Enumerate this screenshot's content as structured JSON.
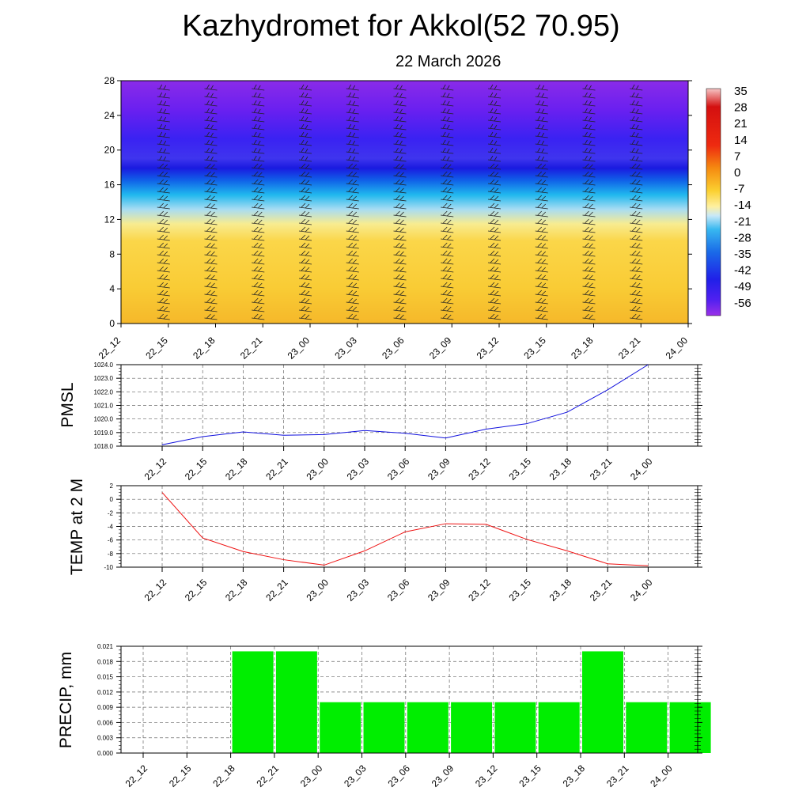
{
  "header": {
    "title": "Kazhydromet for Akkol(52 70.95)",
    "date": "22 March 2026"
  },
  "colors": {
    "pmsl_line": "#1010dd",
    "temp_line": "#ee1111",
    "precip_bar": "#00ee00",
    "warm": "#f9c52a",
    "cold": "#6a20f0"
  },
  "chart_data": [
    {
      "name": "cross-section",
      "type": "heatmap",
      "categories": [
        "22_12",
        "22_15",
        "22_18",
        "22_21",
        "23_00",
        "23_03",
        "23_06",
        "23_09",
        "23_12",
        "23_15",
        "23_18",
        "23_21",
        "24_00"
      ],
      "ylim": [
        0,
        28
      ],
      "yticks": [
        0,
        4,
        8,
        12,
        16,
        20,
        24,
        28
      ],
      "colorbar_labels": [
        "35",
        "28",
        "21",
        "14",
        "7",
        "0",
        "-7",
        "-14",
        "-21",
        "-28",
        "-35",
        "-42",
        "-49",
        "-56"
      ]
    },
    {
      "name": "pmsl",
      "type": "line",
      "ylabel": "PMSL",
      "categories": [
        "22_12",
        "22_15",
        "22_18",
        "22_21",
        "23_00",
        "23_03",
        "23_06",
        "23_09",
        "23_12",
        "23_15",
        "23_18",
        "23_21",
        "24_00"
      ],
      "values": [
        1018.1,
        1018.7,
        1019.05,
        1018.8,
        1018.85,
        1019.15,
        1018.95,
        1018.6,
        1019.25,
        1019.65,
        1020.5,
        1022.15,
        1024.0
      ],
      "ylim": [
        1018.0,
        1024.0
      ],
      "yticks": [
        "1018.0",
        "1019.0",
        "1020.0",
        "1021.0",
        "1022.0",
        "1023.0",
        "1024.0"
      ]
    },
    {
      "name": "temp",
      "type": "line",
      "ylabel": "TEMP at 2 M",
      "categories": [
        "22_12",
        "22_15",
        "22_18",
        "22_21",
        "23_00",
        "23_03",
        "23_06",
        "23_09",
        "23_12",
        "23_15",
        "23_18",
        "23_21",
        "24_00"
      ],
      "values": [
        1.0,
        -5.7,
        -7.7,
        -8.9,
        -9.7,
        -7.6,
        -4.8,
        -3.6,
        -3.7,
        -5.9,
        -7.6,
        -9.5,
        -9.8
      ],
      "ylim": [
        -10,
        2
      ],
      "yticks": [
        "-10",
        "-8",
        "-6",
        "-4",
        "-2",
        "0",
        "2"
      ]
    },
    {
      "name": "precip",
      "type": "bar",
      "ylabel": "PRECIP, mm",
      "categories": [
        "22_12",
        "22_15",
        "22_18",
        "22_21",
        "23_00",
        "23_03",
        "23_06",
        "23_09",
        "23_12",
        "23_15",
        "23_18",
        "23_21",
        "24_00"
      ],
      "values": [
        0,
        0,
        0.02,
        0.02,
        0.01,
        0.01,
        0.01,
        0.01,
        0.01,
        0.01,
        0.02,
        0.01,
        0.01
      ],
      "ylim": [
        0,
        0.021
      ],
      "yticks": [
        "0.000",
        "0.003",
        "0.006",
        "0.009",
        "0.012",
        "0.015",
        "0.018",
        "0.021"
      ]
    }
  ]
}
